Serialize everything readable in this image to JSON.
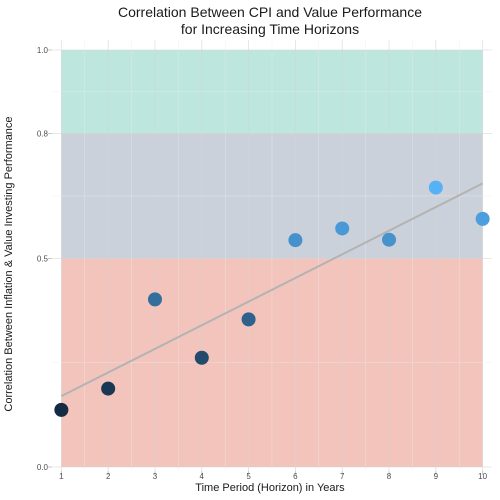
{
  "chart_data": {
    "type": "scatter",
    "title_lines": [
      "Correlation Between CPI and Value Performance",
      "for Increasing Time Horizons"
    ],
    "xlabel": "Time Period (Horizon) in Years",
    "ylabel": "Correlation Between Inflation & Value Investing Performance",
    "x": [
      1,
      2,
      3,
      4,
      5,
      6,
      7,
      8,
      9,
      10
    ],
    "y": [
      0.137,
      0.188,
      0.402,
      0.262,
      0.354,
      0.544,
      0.572,
      0.545,
      0.67,
      0.595
    ],
    "xlim": [
      0.8,
      10.2
    ],
    "ylim": [
      0.0,
      1.0
    ],
    "xticks": [
      "1",
      "2",
      "3",
      "4",
      "5",
      "6",
      "7",
      "8",
      "9",
      "10"
    ],
    "yticks": [
      {
        "value": 0.0,
        "label": "0.0"
      },
      {
        "value": 0.5,
        "label": "0.5"
      },
      {
        "value": 0.8,
        "label": "0.8"
      },
      {
        "value": 1.0,
        "label": "1.0"
      }
    ],
    "bands": [
      {
        "from": 0.0,
        "to": 0.5,
        "color": "#f2c4bc"
      },
      {
        "from": 0.5,
        "to": 0.8,
        "color": "#cbd1da"
      },
      {
        "from": 0.8,
        "to": 1.0,
        "color": "#bde6de"
      }
    ],
    "band_x_range": [
      1,
      10
    ],
    "trendline": {
      "x": [
        1,
        10
      ],
      "y": [
        0.17,
        0.68
      ],
      "color": "#b3b3b3"
    },
    "point_color_scale": [
      "#132b43",
      "#56b1f7"
    ],
    "grid": true
  }
}
